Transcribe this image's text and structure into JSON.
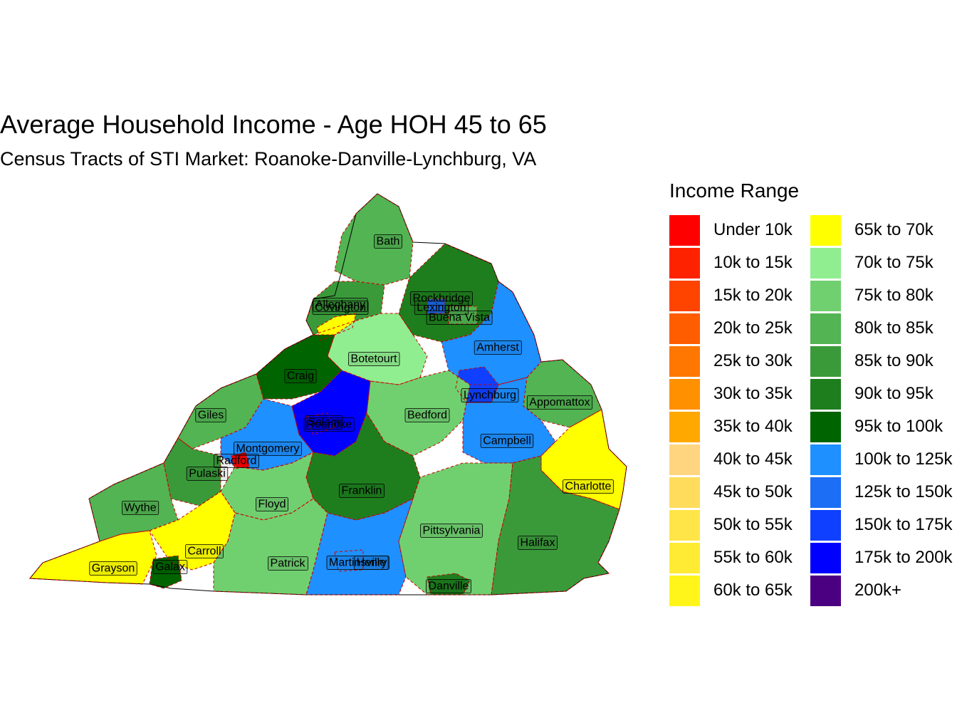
{
  "title": "Average Household Income - Age HOH 45 to 65",
  "subtitle": "Census Tracts of STI Market: Roanoke-Danville-Lynchburg, VA",
  "legend": {
    "title": "Income Range",
    "items": [
      {
        "label": "Under 10k",
        "color": "#FF0000"
      },
      {
        "label": "10k to 15k",
        "color": "#FF2200"
      },
      {
        "label": "15k to 20k",
        "color": "#FF4400"
      },
      {
        "label": "20k to 25k",
        "color": "#FF5D00"
      },
      {
        "label": "25k to 30k",
        "color": "#FF7700"
      },
      {
        "label": "30k to 35k",
        "color": "#FF9000"
      },
      {
        "label": "35k to 40k",
        "color": "#FFA800"
      },
      {
        "label": "40k to 45k",
        "color": "#FFD580"
      },
      {
        "label": "45k to 50k",
        "color": "#FFDC5C"
      },
      {
        "label": "50k to 55k",
        "color": "#FFE547"
      },
      {
        "label": "55k to 60k",
        "color": "#FFEB33"
      },
      {
        "label": "60k to 65k",
        "color": "#FFF51A"
      },
      {
        "label": "65k to 70k",
        "color": "#FFFF00"
      },
      {
        "label": "70k to 75k",
        "color": "#90EE90"
      },
      {
        "label": "75k to 80k",
        "color": "#70D070"
      },
      {
        "label": "80k to 85k",
        "color": "#52B452"
      },
      {
        "label": "85k to 90k",
        "color": "#3A9A3A"
      },
      {
        "label": "90k to 95k",
        "color": "#1E7E1E"
      },
      {
        "label": "95k to 100k",
        "color": "#006400"
      },
      {
        "label": "100k to 125k",
        "color": "#1E90FF"
      },
      {
        "label": "125k to 150k",
        "color": "#1C6EF5"
      },
      {
        "label": "150k to 175k",
        "color": "#1040FF"
      },
      {
        "label": "175k to 200k",
        "color": "#0000FF"
      },
      {
        "label": "200k+",
        "color": "#4B0082"
      }
    ]
  },
  "map": {
    "outline_color": "#000000",
    "boundary_color": "#CC0000",
    "regions": [
      {
        "label": "Bath",
        "color": "#52B452"
      },
      {
        "label": "Alleghany",
        "color": "#3A9A3A"
      },
      {
        "label": "Covington",
        "color": "#FFFF00"
      },
      {
        "label": "Rockbridge",
        "color": "#1E7E1E"
      },
      {
        "label": "Lexington",
        "color": "#1C6EF5"
      },
      {
        "label": "Buena Vista",
        "color": "#52B452"
      },
      {
        "label": "Botetourt",
        "color": "#90EE90"
      },
      {
        "label": "Amherst",
        "color": "#1E90FF"
      },
      {
        "label": "Craig",
        "color": "#006400"
      },
      {
        "label": "Lynchburg",
        "color": "#1040FF"
      },
      {
        "label": "Appomattox",
        "color": "#52B452"
      },
      {
        "label": "Giles",
        "color": "#52B452"
      },
      {
        "label": "Salem",
        "color": "#1E90FF"
      },
      {
        "label": "Roanoke",
        "color": "#0000FF"
      },
      {
        "label": "Bedford",
        "color": "#70D070"
      },
      {
        "label": "Montgomery",
        "color": "#1E90FF"
      },
      {
        "label": "Radford",
        "color": "#FF0000"
      },
      {
        "label": "Campbell",
        "color": "#1E90FF"
      },
      {
        "label": "Pulaski",
        "color": "#3A9A3A"
      },
      {
        "label": "Charlotte",
        "color": "#FFFF00"
      },
      {
        "label": "Franklin",
        "color": "#1E7E1E"
      },
      {
        "label": "Wythe",
        "color": "#52B452"
      },
      {
        "label": "Floyd",
        "color": "#70D070"
      },
      {
        "label": "Pittsylvania",
        "color": "#70D070"
      },
      {
        "label": "Halifax",
        "color": "#3A9A3A"
      },
      {
        "label": "Carroll",
        "color": "#FFFF00"
      },
      {
        "label": "Grayson",
        "color": "#FFFF00"
      },
      {
        "label": "Galax",
        "color": "#006400"
      },
      {
        "label": "Patrick",
        "color": "#70D070"
      },
      {
        "label": "Martinsville",
        "color": "#FFEB33"
      },
      {
        "label": "Henry",
        "color": "#1E90FF"
      },
      {
        "label": "Danville",
        "color": "#1E7E1E"
      }
    ]
  }
}
